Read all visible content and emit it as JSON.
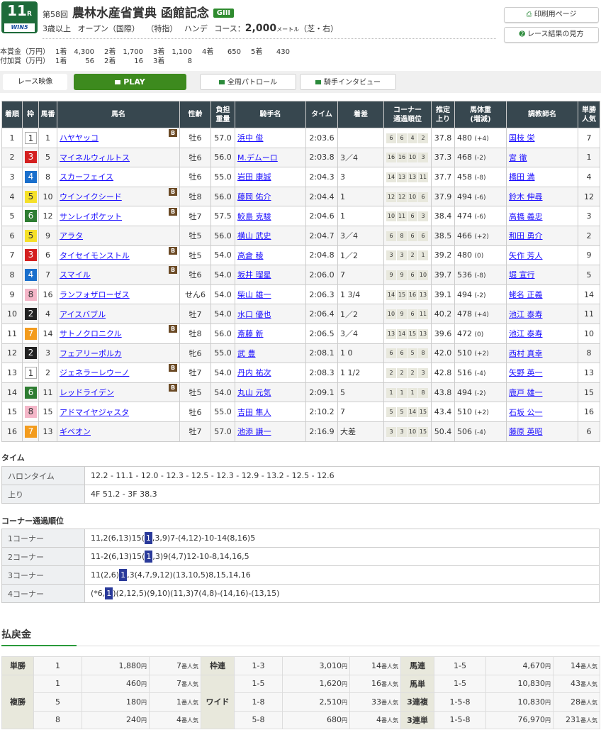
{
  "header": {
    "race_no": "11",
    "race_suffix": "R",
    "win5": "WIN5",
    "kai": "第58回",
    "title": "農林水産省賞典 函館記念",
    "grade": "GIII",
    "conditions": [
      "3歳以上",
      "オープン（国際）",
      "（特指）",
      "ハンデ"
    ],
    "course_label": "コース：",
    "distance": "2,000",
    "unit": "メートル",
    "surface": "（芝・右）"
  },
  "prize": {
    "main_label": "本賞金（万円）",
    "main": [
      [
        "1着",
        "4,300"
      ],
      [
        "2着",
        "1,700"
      ],
      [
        "3着",
        "1,100"
      ],
      [
        "4着",
        "650"
      ],
      [
        "5着",
        "430"
      ]
    ],
    "add_label": "付加賞（万円）",
    "add": [
      [
        "1着",
        "56"
      ],
      [
        "2着",
        "16"
      ],
      [
        "3着",
        "8"
      ]
    ]
  },
  "buttons": {
    "print": "印刷用ページ",
    "howto": "レース結果の見方",
    "video_label": "レース映像",
    "play": "PLAY",
    "patrol": "全周パトロール",
    "interview": "騎手インタビュー"
  },
  "colors": {
    "brand": "#1e6b3a",
    "play": "#3d8a1e",
    "header": "#37474f",
    "waku": {
      "1": "#ffffff",
      "2": "#222222",
      "3": "#d42020",
      "4": "#1a6fcc",
      "5": "#f5e028",
      "6": "#2e7d32",
      "7": "#f39c1e",
      "8": "#f4b6c8"
    }
  },
  "table": {
    "headers": [
      "着順",
      "枠",
      "馬番",
      "馬名",
      "性齢",
      "負担\n重量",
      "騎手名",
      "タイム",
      "着差",
      "コーナー\n通過順位",
      "推定\n上り",
      "馬体重\n(増減)",
      "調教師名",
      "単勝\n人気"
    ],
    "rows": [
      [
        "1",
        "1",
        "1",
        "ハヤヤッコ",
        true,
        "牡6",
        "57.0",
        "浜中 俊",
        "2:03.6",
        "",
        [
          "6",
          "6",
          "4",
          "2"
        ],
        "37.8",
        "480",
        "(+4)",
        "国枝 栄",
        "7"
      ],
      [
        "2",
        "3",
        "5",
        "マイネルウィルトス",
        false,
        "牡6",
        "56.0",
        "M.デムーロ",
        "2:03.8",
        "3／4",
        [
          "16",
          "16",
          "10",
          "3"
        ],
        "37.3",
        "468",
        "(-2)",
        "宮 徹",
        "1"
      ],
      [
        "3",
        "4",
        "8",
        "スカーフェイス",
        false,
        "牡6",
        "55.0",
        "岩田 康誠",
        "2:04.3",
        "3",
        [
          "14",
          "13",
          "13",
          "11"
        ],
        "37.7",
        "458",
        "(-8)",
        "橋田 満",
        "4"
      ],
      [
        "4",
        "5",
        "10",
        "ウインイクシード",
        true,
        "牡8",
        "56.0",
        "藤岡 佑介",
        "2:04.4",
        "1",
        [
          "12",
          "12",
          "10",
          "6"
        ],
        "37.9",
        "494",
        "(-6)",
        "鈴木 伸尋",
        "12"
      ],
      [
        "5",
        "6",
        "12",
        "サンレイポケット",
        true,
        "牡7",
        "57.5",
        "鮫島 克駿",
        "2:04.6",
        "1",
        [
          "10",
          "11",
          "6",
          "3"
        ],
        "38.4",
        "474",
        "(-6)",
        "高橋 義忠",
        "3"
      ],
      [
        "6",
        "5",
        "9",
        "アラタ",
        false,
        "牡5",
        "56.0",
        "横山 武史",
        "2:04.7",
        "3／4",
        [
          "6",
          "8",
          "6",
          "6"
        ],
        "38.5",
        "466",
        "(+2)",
        "和田 勇介",
        "2"
      ],
      [
        "7",
        "3",
        "6",
        "タイセイモンストル",
        true,
        "牡5",
        "54.0",
        "高倉 稜",
        "2:04.8",
        "1／2",
        [
          "3",
          "3",
          "2",
          "1"
        ],
        "39.2",
        "480",
        "(0)",
        "矢作 芳人",
        "9"
      ],
      [
        "8",
        "4",
        "7",
        "スマイル",
        true,
        "牡6",
        "54.0",
        "坂井 瑠星",
        "2:06.0",
        "7",
        [
          "9",
          "9",
          "6",
          "10"
        ],
        "39.7",
        "536",
        "(-8)",
        "堀 宣行",
        "5"
      ],
      [
        "9",
        "8",
        "16",
        "ランフォザローゼス",
        false,
        "せん6",
        "54.0",
        "柴山 雄一",
        "2:06.3",
        "1 3/4",
        [
          "14",
          "15",
          "16",
          "13"
        ],
        "39.1",
        "494",
        "(-2)",
        "蛯名 正義",
        "14"
      ],
      [
        "10",
        "2",
        "4",
        "アイスバブル",
        false,
        "牡7",
        "54.0",
        "水口 優也",
        "2:06.4",
        "1／2",
        [
          "10",
          "9",
          "6",
          "11"
        ],
        "40.2",
        "478",
        "(+4)",
        "池江 泰寿",
        "11"
      ],
      [
        "11",
        "7",
        "14",
        "サトノクロニクル",
        true,
        "牡8",
        "56.0",
        "斎藤 新",
        "2:06.5",
        "3／4",
        [
          "13",
          "14",
          "15",
          "13"
        ],
        "39.6",
        "472",
        "(0)",
        "池江 泰寿",
        "10"
      ],
      [
        "12",
        "2",
        "3",
        "フェアリーポルカ",
        false,
        "牝6",
        "55.0",
        "武 豊",
        "2:08.1",
        "1 0",
        [
          "6",
          "6",
          "5",
          "8"
        ],
        "42.0",
        "510",
        "(+2)",
        "西村 真幸",
        "8"
      ],
      [
        "13",
        "1",
        "2",
        "ジェネラーレウーノ",
        true,
        "牡7",
        "54.0",
        "丹内 祐次",
        "2:08.3",
        "1 1/2",
        [
          "2",
          "2",
          "2",
          "3"
        ],
        "42.8",
        "516",
        "(-4)",
        "矢野 英一",
        "13"
      ],
      [
        "14",
        "6",
        "11",
        "レッドライデン",
        true,
        "牡5",
        "54.0",
        "丸山 元気",
        "2:09.1",
        "5",
        [
          "1",
          "1",
          "1",
          "8"
        ],
        "43.8",
        "494",
        "(-2)",
        "鹿戸 雄一",
        "15"
      ],
      [
        "15",
        "8",
        "15",
        "アドマイヤジャスタ",
        false,
        "牡6",
        "55.0",
        "吉田 隼人",
        "2:10.2",
        "7",
        [
          "5",
          "5",
          "14",
          "15"
        ],
        "43.4",
        "510",
        "(+2)",
        "石坂 公一",
        "16"
      ],
      [
        "16",
        "7",
        "13",
        "ギベオン",
        false,
        "牡7",
        "57.0",
        "池添 謙一",
        "2:16.9",
        "大差",
        [
          "3",
          "3",
          "10",
          "15"
        ],
        "50.4",
        "506",
        "(-4)",
        "藤原 英昭",
        "6"
      ]
    ],
    "blinker": "B"
  },
  "time": {
    "title": "タイム",
    "furlong_label": "ハロンタイム",
    "furlong": "12.2 - 11.1 - 12.0 - 12.3 - 12.5 - 12.3 - 12.9 - 13.2 - 12.5 - 12.6",
    "last_label": "上り",
    "last": "4F 51.2 - 3F 38.3"
  },
  "corner": {
    "title": "コーナー通過順位",
    "rows": [
      {
        "label": "1コーナー",
        "pre": "11,2(6,13)15(",
        "hl": "1",
        "post": ",3,9)7-(4,12)-10-14(8,16)5"
      },
      {
        "label": "2コーナー",
        "pre": "11-2(6,13)15(",
        "hl": "1",
        "post": ",3)9(4,7)12-10-8,14,16,5"
      },
      {
        "label": "3コーナー",
        "pre": "11(2,6)",
        "hl": "1",
        "post": ",3(4,7,9,12)(13,10,5)8,15,14,16"
      },
      {
        "label": "4コーナー",
        "pre": "(*6,",
        "hl": "1",
        "post": ")(2,12,5)(9,10)(11,3)7(4,8)-(14,16)-(13,15)"
      }
    ]
  },
  "payout": {
    "title": "払戻金",
    "yen": "円",
    "ninki": "番人気",
    "rows": [
      [
        [
          "単勝",
          "1",
          "1,880",
          "7"
        ],
        [
          "枠連",
          "1-3",
          "3,010",
          "14"
        ],
        [
          "馬連",
          "1-5",
          "4,670",
          "14"
        ]
      ],
      [
        [
          "複勝",
          "1",
          "460",
          "7"
        ],
        [
          "ワイド",
          "1-5",
          "1,620",
          "16"
        ],
        [
          "馬単",
          "1-5",
          "10,830",
          "43"
        ]
      ],
      [
        [
          null,
          "5",
          "180",
          "1"
        ],
        [
          null,
          "1-8",
          "2,510",
          "33"
        ],
        [
          "3連複",
          "1-5-8",
          "10,830",
          "28"
        ]
      ],
      [
        [
          null,
          "8",
          "240",
          "4"
        ],
        [
          null,
          "5-8",
          "680",
          "4"
        ],
        [
          "3連単",
          "1-5-8",
          "76,970",
          "231"
        ]
      ]
    ]
  }
}
